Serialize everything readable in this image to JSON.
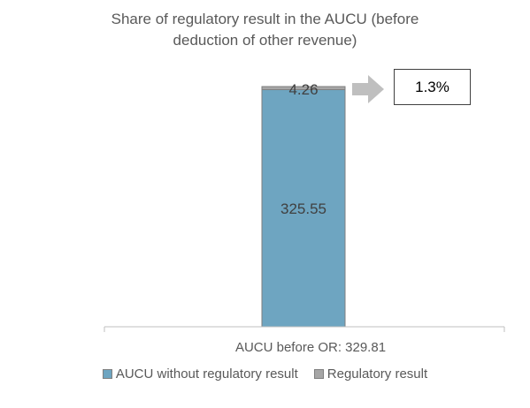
{
  "chart_data": {
    "type": "bar",
    "stacked": true,
    "title": "Share of regulatory result in the AUCU (before deduction of other revenue)",
    "title_lines": [
      "Share of regulatory result in the AUCU (before",
      "deduction of other revenue)"
    ],
    "categories": [
      "AUCU before OR:  329.81"
    ],
    "series": [
      {
        "name": "AUCU without regulatory result",
        "values": [
          325.55
        ],
        "label": "325.55",
        "color": "#6EA5C1"
      },
      {
        "name": "Regulatory result",
        "values": [
          4.26
        ],
        "label": "4.26",
        "color": "#A6A6A6"
      }
    ],
    "total": 329.81,
    "ylim": [
      0,
      329.81
    ],
    "grid": false,
    "legend_position": "bottom",
    "annotation": {
      "text": "1.3%",
      "arrow_color": "#BFBFBF"
    }
  }
}
